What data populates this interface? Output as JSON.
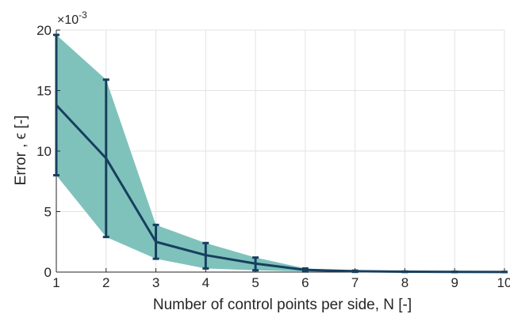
{
  "chart_data": {
    "type": "line",
    "title": "",
    "xlabel": "Number of control points per side, N [-]",
    "ylabel": "Error , ϵ [-]",
    "y_exponent_base": "×10",
    "y_exponent_power": "-3",
    "x": [
      1,
      2,
      3,
      4,
      5,
      6,
      7,
      8,
      9,
      10
    ],
    "xticks": [
      "1",
      "2",
      "3",
      "4",
      "5",
      "6",
      "7",
      "8",
      "9",
      "10"
    ],
    "yticks": [
      "0",
      "5",
      "10",
      "15",
      "20"
    ],
    "xlim": [
      1,
      10
    ],
    "ylim": [
      0,
      20
    ],
    "grid": true,
    "series": [
      {
        "values": [
          13.8,
          9.4,
          2.5,
          1.4,
          0.7,
          0.18,
          0.07,
          0.03,
          0.02,
          0.01
        ],
        "upper": [
          19.6,
          15.9,
          3.9,
          2.4,
          1.2,
          0.3,
          0.12,
          0.05,
          0.03,
          0.02
        ],
        "lower": [
          8.0,
          2.9,
          1.1,
          0.3,
          0.15,
          0.05,
          0.02,
          0.01,
          0.0,
          0.0
        ],
        "line_color": "#173f5f",
        "band_color": "#7fc2bb"
      }
    ]
  }
}
